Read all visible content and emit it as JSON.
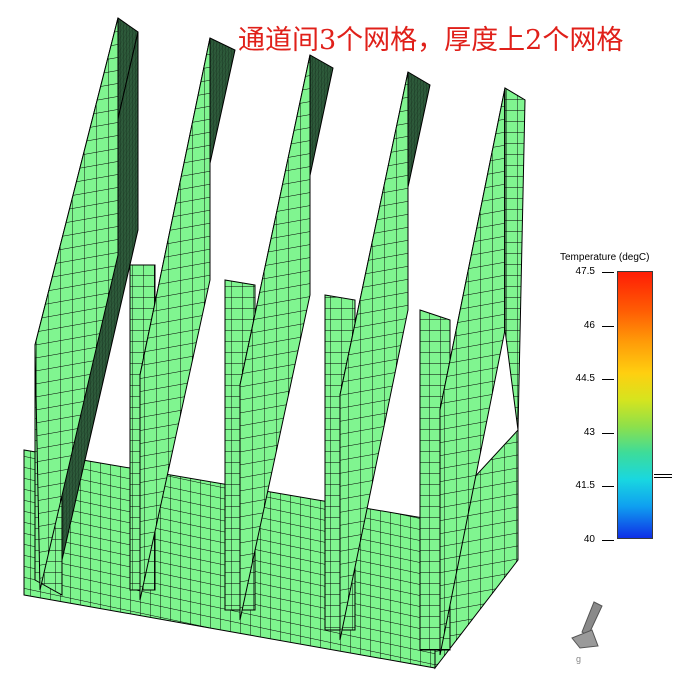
{
  "title": "通道间3个网格，厚度上2个网格",
  "legend": {
    "title": "Temperature (degC)",
    "ticks": [
      "47.5",
      "46",
      "44.5",
      "43",
      "41.5",
      "40"
    ],
    "min": 40,
    "max": 47.5,
    "indicator_value": 41.8
  },
  "triad": {
    "axis_label": "g"
  },
  "colors": {
    "mesh_fill": "#7ef58e",
    "mesh_fill_light": "#90f7a0",
    "mesh_line": "#000000",
    "title_color": "#e0201a"
  }
}
